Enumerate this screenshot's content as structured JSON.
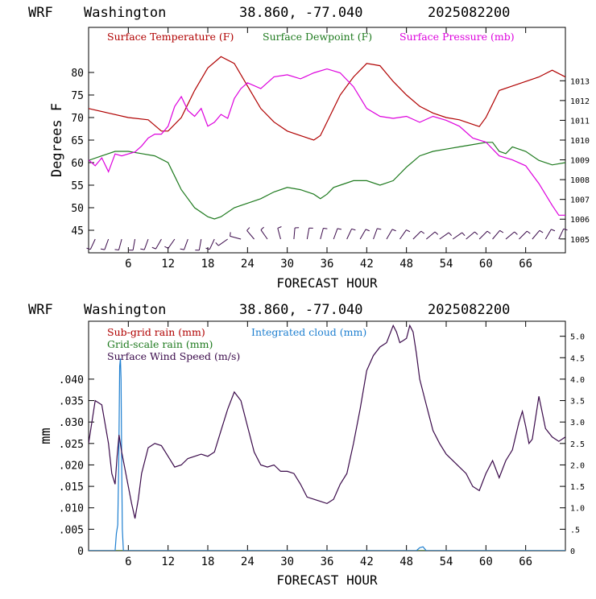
{
  "chart_data": [
    {
      "type": "line",
      "header": {
        "model": "WRF",
        "location": "Washington",
        "coords": "38.860, -77.040",
        "run": "2025082200"
      },
      "xlabel": "FORECAST HOUR",
      "ylabel": "Degrees F",
      "xlim": [
        0,
        72
      ],
      "ylim": [
        40,
        90
      ],
      "y2lim": [
        1004.3,
        1015.7
      ],
      "xticks": [
        "6",
        "12",
        "18",
        "24",
        "30",
        "36",
        "42",
        "48",
        "54",
        "60",
        "66"
      ],
      "xtick_values": [
        6,
        12,
        18,
        24,
        30,
        36,
        42,
        48,
        54,
        60,
        66
      ],
      "yticks": [
        "45",
        "50",
        "55",
        "60",
        "65",
        "70",
        "75",
        "80"
      ],
      "ytick_values": [
        45,
        50,
        55,
        60,
        65,
        70,
        75,
        80
      ],
      "y2ticks": [
        "1005",
        "1006",
        "1007",
        "1008",
        "1009",
        "1010",
        "1011",
        "1012",
        "1013"
      ],
      "y2tick_values": [
        1005,
        1006,
        1007,
        1008,
        1009,
        1010,
        1011,
        1012,
        1013
      ],
      "grid": false,
      "legend_position": "top",
      "series": [
        {
          "name": "Surface Temperature (F)",
          "color": "#b00000",
          "axis": "left",
          "x": [
            0,
            3,
            6,
            9,
            11,
            12,
            14,
            16,
            18,
            20,
            22,
            24,
            26,
            28,
            30,
            32,
            34,
            35,
            36,
            38,
            40,
            42,
            44,
            46,
            48,
            50,
            52,
            54,
            56,
            58,
            59,
            60,
            61,
            62,
            64,
            66,
            68,
            70,
            72
          ],
          "values": [
            72,
            71,
            70,
            69.5,
            67,
            67,
            70,
            76,
            81,
            83.5,
            82,
            77,
            72,
            69,
            67,
            66,
            65,
            66,
            69,
            75,
            79,
            82,
            81.5,
            78,
            75,
            72.5,
            71,
            70,
            69.5,
            68.5,
            68,
            70,
            73,
            76,
            77,
            78,
            79,
            80.5,
            79
          ]
        },
        {
          "name": "Surface Dewpoint (F)",
          "color": "#1e7a1e",
          "axis": "left",
          "x": [
            0,
            2,
            4,
            6,
            8,
            10,
            12,
            13,
            14,
            16,
            18,
            19,
            20,
            22,
            24,
            26,
            28,
            30,
            32,
            34,
            35,
            36,
            37,
            38,
            40,
            42,
            44,
            46,
            48,
            50,
            52,
            54,
            56,
            58,
            60,
            61,
            62,
            63,
            64,
            66,
            68,
            70,
            72
          ],
          "values": [
            60.5,
            61.5,
            62.5,
            62.5,
            62,
            61.5,
            60,
            57,
            54,
            50,
            48,
            47.5,
            48,
            50,
            51,
            52,
            53.5,
            54.5,
            54,
            53,
            52,
            53,
            54.5,
            55,
            56,
            56,
            55,
            56,
            59,
            61.5,
            62.5,
            63,
            63.5,
            64,
            64.5,
            64.5,
            62.5,
            62,
            63.5,
            62.5,
            60.5,
            59.5,
            60
          ]
        },
        {
          "name": "Surface Pressure (mb)",
          "color": "#dd00dd",
          "axis": "right",
          "x": [
            0,
            1,
            2,
            3,
            4,
            5,
            6,
            7,
            8,
            9,
            10,
            11,
            12,
            13,
            14,
            15,
            16,
            17,
            18,
            19,
            20,
            21,
            22,
            23,
            24,
            26,
            28,
            30,
            32,
            34,
            36,
            38,
            40,
            42,
            44,
            46,
            48,
            50,
            52,
            54,
            56,
            58,
            60,
            62,
            64,
            66,
            68,
            70,
            71,
            72
          ],
          "values": [
            1009,
            1008.7,
            1009.1,
            1008.4,
            1009.3,
            1009.2,
            1009.3,
            1009.4,
            1009.7,
            1010.1,
            1010.3,
            1010.3,
            1010.7,
            1011.7,
            1012.2,
            1011.5,
            1011.2,
            1011.6,
            1010.7,
            1010.9,
            1011.3,
            1011.1,
            1012.1,
            1012.6,
            1012.9,
            1012.6,
            1013.2,
            1013.3,
            1013.1,
            1013.4,
            1013.6,
            1013.4,
            1012.7,
            1011.6,
            1011.2,
            1011.1,
            1011.2,
            1010.9,
            1011.2,
            1011,
            1010.7,
            1010.1,
            1009.9,
            1009.2,
            1009,
            1008.7,
            1007.8,
            1006.7,
            1006.2,
            1006.2
          ]
        }
      ],
      "wind_barbs": [
        {
          "x": 1,
          "dir": 205
        },
        {
          "x": 3,
          "dir": 200
        },
        {
          "x": 5,
          "dir": 195
        },
        {
          "x": 7,
          "dir": 190
        },
        {
          "x": 9,
          "dir": 200
        },
        {
          "x": 11,
          "dir": 210
        },
        {
          "x": 13,
          "dir": 215
        },
        {
          "x": 15,
          "dir": 200
        },
        {
          "x": 17,
          "dir": 190
        },
        {
          "x": 19,
          "dir": 205
        },
        {
          "x": 21,
          "dir": 235
        },
        {
          "x": 23,
          "dir": 285
        },
        {
          "x": 25,
          "dir": 320
        },
        {
          "x": 27,
          "dir": 325
        },
        {
          "x": 29,
          "dir": 345
        },
        {
          "x": 31,
          "dir": 5
        },
        {
          "x": 33,
          "dir": 10
        },
        {
          "x": 35,
          "dir": 15
        },
        {
          "x": 37,
          "dir": 20
        },
        {
          "x": 39,
          "dir": 25
        },
        {
          "x": 41,
          "dir": 30
        },
        {
          "x": 43,
          "dir": 20
        },
        {
          "x": 45,
          "dir": 30
        },
        {
          "x": 47,
          "dir": 35
        },
        {
          "x": 49,
          "dir": 45
        },
        {
          "x": 51,
          "dir": 50
        },
        {
          "x": 53,
          "dir": 55
        },
        {
          "x": 55,
          "dir": 55
        },
        {
          "x": 57,
          "dir": 50
        },
        {
          "x": 59,
          "dir": 45
        },
        {
          "x": 61,
          "dir": 40
        },
        {
          "x": 63,
          "dir": 50
        },
        {
          "x": 65,
          "dir": 45
        },
        {
          "x": 67,
          "dir": 40
        },
        {
          "x": 69,
          "dir": 30
        },
        {
          "x": 71,
          "dir": 25
        }
      ]
    },
    {
      "type": "line",
      "header": {
        "model": "WRF",
        "location": "Washington",
        "coords": "38.860, -77.040",
        "run": "2025082200"
      },
      "xlabel": "FORECAST HOUR",
      "ylabel": "mm",
      "xlim": [
        0,
        72
      ],
      "ylim": [
        0,
        0.0535
      ],
      "y2lim": [
        0,
        5.35
      ],
      "xticks": [
        "6",
        "12",
        "18",
        "24",
        "30",
        "36",
        "42",
        "48",
        "54",
        "60",
        "66"
      ],
      "xtick_values": [
        6,
        12,
        18,
        24,
        30,
        36,
        42,
        48,
        54,
        60,
        66
      ],
      "yticks": [
        "0",
        ".005",
        ".010",
        ".015",
        ".020",
        ".025",
        ".030",
        ".035",
        ".040"
      ],
      "ytick_values": [
        0,
        0.005,
        0.01,
        0.015,
        0.02,
        0.025,
        0.03,
        0.035,
        0.04
      ],
      "y2ticks": [
        "0",
        ".5",
        "1.0",
        "1.5",
        "2.0",
        "2.5",
        "3.0",
        "3.5",
        "4.0",
        "4.5",
        "5.0"
      ],
      "y2tick_values": [
        0,
        0.5,
        1.0,
        1.5,
        2.0,
        2.5,
        3.0,
        3.5,
        4.0,
        4.5,
        5.0
      ],
      "grid": false,
      "legend_position": "top-left",
      "series": [
        {
          "name": "Sub-grid rain (mm)",
          "color": "#b00000",
          "axis": "left",
          "x": [
            0,
            72
          ],
          "values": [
            0,
            0
          ]
        },
        {
          "name": "Grid-scale rain (mm)",
          "color": "#1e7a1e",
          "axis": "left",
          "x": [
            0,
            72
          ],
          "values": [
            0,
            0
          ]
        },
        {
          "name": "Integrated cloud (mm)",
          "color": "#1e7fd0",
          "axis": "left",
          "x": [
            0,
            4,
            4.2,
            4.4,
            4.55,
            4.7,
            4.8,
            4.9,
            5.0,
            5.1,
            5.25,
            5.5,
            49.5,
            50,
            50.5,
            51,
            72
          ],
          "values": [
            0,
            0,
            0.004,
            0.006,
            0.02,
            0.043,
            0.0448,
            0.04,
            0.02,
            0.005,
            0,
            0,
            0,
            0.0007,
            0.0009,
            0,
            0
          ]
        },
        {
          "name": "Surface Wind Speed (m/s)",
          "color": "#3a0a4a",
          "axis": "right",
          "x": [
            0,
            0.5,
            1,
            2,
            3,
            3.5,
            4,
            4.3,
            4.6,
            5,
            6,
            6.5,
            7,
            7.5,
            8,
            9,
            10,
            11,
            12,
            13,
            14,
            15,
            16,
            17,
            18,
            19,
            20,
            21,
            22,
            23,
            24,
            25,
            26,
            27,
            28,
            29,
            30,
            31,
            32,
            33,
            34,
            35,
            36,
            37,
            38,
            39,
            40,
            41,
            42,
            43,
            44,
            45,
            46,
            46.5,
            47,
            47.5,
            48,
            48.5,
            49,
            49.5,
            50,
            51,
            52,
            53,
            54,
            55,
            56,
            57,
            58,
            59,
            60,
            61,
            62,
            63,
            64,
            65,
            65.5,
            66,
            66.5,
            67,
            68,
            69,
            70,
            71,
            72
          ],
          "values": [
            2.5,
            3,
            3.5,
            3.4,
            2.5,
            1.8,
            1.55,
            2.2,
            2.7,
            2.3,
            1.5,
            1.1,
            0.75,
            1.2,
            1.8,
            2.4,
            2.5,
            2.45,
            2.2,
            1.95,
            2.0,
            2.15,
            2.2,
            2.25,
            2.2,
            2.3,
            2.8,
            3.3,
            3.7,
            3.5,
            2.9,
            2.3,
            2.0,
            1.95,
            2.0,
            1.85,
            1.85,
            1.8,
            1.55,
            1.25,
            1.2,
            1.15,
            1.1,
            1.2,
            1.55,
            1.8,
            2.5,
            3.3,
            4.2,
            4.55,
            4.75,
            4.85,
            5.25,
            5.1,
            4.85,
            4.9,
            4.95,
            5.25,
            5.1,
            4.6,
            4.0,
            3.4,
            2.8,
            2.5,
            2.25,
            2.1,
            1.95,
            1.8,
            1.5,
            1.4,
            1.8,
            2.1,
            1.7,
            2.1,
            2.35,
            3.0,
            3.25,
            2.9,
            2.5,
            2.6,
            3.6,
            2.85,
            2.65,
            2.55,
            2.65
          ]
        }
      ]
    }
  ]
}
